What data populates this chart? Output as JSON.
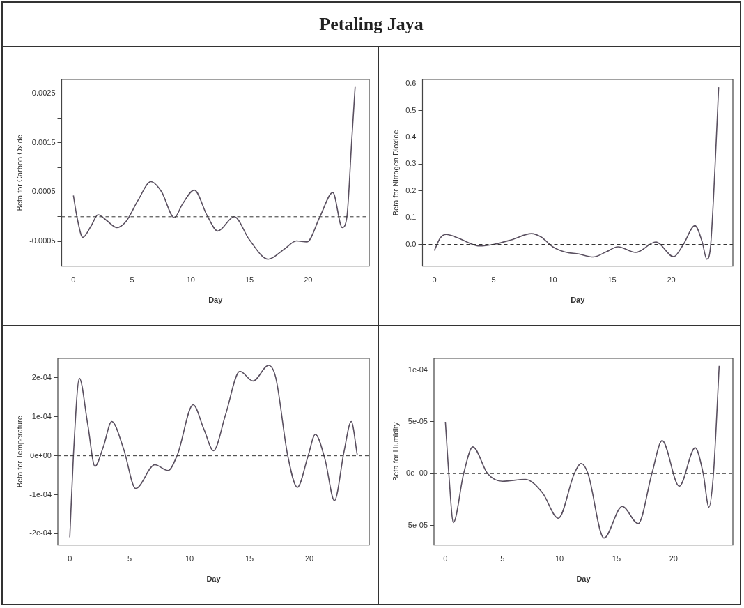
{
  "chart_data": [
    {
      "type": "line",
      "title": "Petaling Jaya",
      "xlabel": "Day",
      "ylabel": "Beta for Carbon Oxide",
      "xlim": [
        -1,
        25.2
      ],
      "xticks": [
        0,
        5,
        10,
        15,
        20
      ],
      "ylim": [
        -0.001,
        0.00278
      ],
      "yticks": [
        {
          "value": -0.0005,
          "label": "-0.0005"
        },
        {
          "value": 0,
          "label": null
        },
        {
          "value": 0.0005,
          "label": "0.0005"
        },
        {
          "value": 0.001,
          "label": null
        },
        {
          "value": 0.0015,
          "label": "0.0015"
        },
        {
          "value": 0.002,
          "label": null
        },
        {
          "value": 0.0025,
          "label": "0.0025"
        }
      ],
      "grid": false,
      "legend": false,
      "marker": "none",
      "line_style": "solid",
      "ref_lines": [
        {
          "axis": "y",
          "value": 0,
          "line_style": "dashed",
          "color": "#333333"
        }
      ],
      "series": [
        {
          "color": "#5a5060",
          "x": [
            0,
            0.3,
            0.8,
            1.5,
            2.1,
            2.8,
            3.7,
            4.5,
            5.5,
            6.6,
            7.5,
            8.6,
            9.3,
            10.3,
            11.4,
            12.3,
            13.7,
            15,
            16.6,
            18,
            19,
            19.9,
            21,
            22.1,
            22.9,
            23.3,
            23.7,
            24
          ],
          "values": [
            0.00043,
            0,
            -0.00042,
            -0.00019,
            4e-05,
            -7e-05,
            -0.00022,
            -9e-05,
            0.00033,
            0.00071,
            0.00051,
            -2e-05,
            0.00026,
            0.00054,
            2e-05,
            -0.00029,
            0,
            -0.00047,
            -0.00086,
            -0.00065,
            -0.00049,
            -0.00051,
            0,
            0.00049,
            -0.00022,
            0,
            0.0015,
            0.00263
          ]
        }
      ]
    },
    {
      "type": "line",
      "xlabel": "Day",
      "ylabel": "Beta for Nitrogen Dioxide",
      "xlim": [
        -1,
        25.2
      ],
      "xticks": [
        0,
        5,
        10,
        15,
        20
      ],
      "ylim": [
        -0.081,
        0.616
      ],
      "yticks": [
        {
          "value": 0,
          "label": "0.0"
        },
        {
          "value": 0.1,
          "label": "0.1"
        },
        {
          "value": 0.2,
          "label": "0.2"
        },
        {
          "value": 0.3,
          "label": "0.3"
        },
        {
          "value": 0.4,
          "label": "0.4"
        },
        {
          "value": 0.5,
          "label": "0.5"
        },
        {
          "value": 0.6,
          "label": "0.6"
        }
      ],
      "grid": false,
      "legend": false,
      "marker": "none",
      "line_style": "solid",
      "ref_lines": [
        {
          "axis": "y",
          "value": 0,
          "line_style": "dashed",
          "color": "#333333"
        }
      ],
      "series": [
        {
          "color": "#5a5060",
          "x": [
            0,
            0.5,
            1,
            2,
            3,
            3.8,
            5,
            6.5,
            8.2,
            9,
            10,
            11,
            12.2,
            13.4,
            14.5,
            15.5,
            17,
            18.7,
            20.2,
            21,
            22,
            22.6,
            23,
            23.3,
            23.7,
            24
          ],
          "values": [
            -0.023,
            0.024,
            0.037,
            0.024,
            0.004,
            -0.006,
            0,
            0.017,
            0.04,
            0.028,
            -0.009,
            -0.028,
            -0.036,
            -0.047,
            -0.028,
            -0.009,
            -0.03,
            0.009,
            -0.046,
            -0.002,
            0.07,
            0.011,
            -0.055,
            -0.015,
            0.295,
            0.587
          ]
        }
      ]
    },
    {
      "type": "line",
      "xlabel": "Day",
      "ylabel": "Beta for Temperature",
      "xlim": [
        -1,
        25
      ],
      "xticks": [
        0,
        5,
        10,
        15,
        20
      ],
      "ylim": [
        -0.000229,
        0.00025
      ],
      "yticks": [
        {
          "value": -0.0002,
          "label": "-2e-04"
        },
        {
          "value": -0.0001,
          "label": "-1e-04"
        },
        {
          "value": 0,
          "label": "0e+00"
        },
        {
          "value": 0.0001,
          "label": "1e-04"
        },
        {
          "value": 0.0002,
          "label": "2e-04"
        }
      ],
      "grid": false,
      "legend": false,
      "marker": "none",
      "line_style": "solid",
      "ref_lines": [
        {
          "axis": "y",
          "value": 0,
          "line_style": "dashed",
          "color": "#333333"
        }
      ],
      "series": [
        {
          "color": "#5a5060",
          "x": [
            0,
            0.3,
            0.8,
            1.5,
            2.1,
            2.8,
            3.5,
            4.5,
            5.5,
            7.1,
            8.2,
            9,
            10.3,
            11.2,
            12,
            13,
            14.2,
            15.3,
            16.6,
            17.2,
            18.2,
            19,
            19.9,
            20.5,
            21.3,
            22.1,
            22.9,
            23.5,
            24
          ],
          "values": [
            -0.000209,
            0,
            0.000199,
            8e-05,
            -2.7e-05,
            2.3e-05,
            8.8e-05,
            1.7e-05,
            -8.4e-05,
            -2.3e-05,
            -3.8e-05,
            4e-06,
            0.000131,
            6.8e-05,
            1.3e-05,
            0.000105,
            0.000217,
            0.000192,
            0.000232,
            0.0002,
            0,
            -8.1e-05,
            0,
            5.5e-05,
            -8e-06,
            -0.000115,
            1.1e-05,
            8.8e-05,
            3e-06
          ]
        }
      ]
    },
    {
      "type": "line",
      "xlabel": "Day",
      "ylabel": "Beta for Humidity",
      "xlim": [
        -1,
        25.2
      ],
      "xticks": [
        0,
        5,
        10,
        15,
        20
      ],
      "ylim": [
        -6.89e-05,
        0.0001112
      ],
      "yticks": [
        {
          "value": -5e-05,
          "label": "-5e-05"
        },
        {
          "value": 0,
          "label": "0e+00"
        },
        {
          "value": 5e-05,
          "label": "5e-05"
        },
        {
          "value": 0.0001,
          "label": "1e-04"
        }
      ],
      "grid": false,
      "legend": false,
      "marker": "none",
      "line_style": "solid",
      "ref_lines": [
        {
          "axis": "y",
          "value": 0,
          "line_style": "dashed",
          "color": "#333333"
        }
      ],
      "series": [
        {
          "color": "#5a5060",
          "x": [
            0,
            0.3,
            0.7,
            1.6,
            2.4,
            3.7,
            5,
            7,
            8.5,
            9.9,
            11.3,
            11.9,
            12.5,
            13.9,
            15.5,
            16.9,
            18.1,
            19,
            20.5,
            21.9,
            22.6,
            23.1,
            23.5,
            24
          ],
          "values": [
            5e-05,
            0,
            -4.72e-05,
            0,
            2.58e-05,
            0,
            -7.4e-06,
            -5.6e-06,
            -1.84e-05,
            -4.31e-05,
            0,
            9.7e-06,
            0,
            -6.22e-05,
            -3.16e-05,
            -4.82e-05,
            0,
            3.19e-05,
            -1.22e-05,
            2.5e-05,
            0,
            -3.24e-05,
            0,
            0.000104
          ]
        }
      ]
    }
  ]
}
